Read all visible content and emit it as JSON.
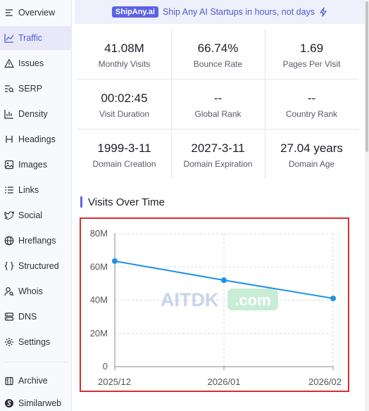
{
  "sidebar": {
    "items": [
      {
        "label": "Overview",
        "icon": "menu-icon",
        "active": false
      },
      {
        "label": "Traffic",
        "icon": "line-chart-icon",
        "active": true
      },
      {
        "label": "Issues",
        "icon": "warning-icon",
        "active": false
      },
      {
        "label": "SERP",
        "icon": "search-list-icon",
        "active": false
      },
      {
        "label": "Density",
        "icon": "bar-chart-icon",
        "active": false
      },
      {
        "label": "Headings",
        "icon": "heading-icon",
        "active": false
      },
      {
        "label": "Images",
        "icon": "image-icon",
        "active": false
      },
      {
        "label": "Links",
        "icon": "list-icon",
        "active": false
      },
      {
        "label": "Social",
        "icon": "twitter-icon",
        "active": false
      },
      {
        "label": "Hreflangs",
        "icon": "globe-icon",
        "active": false
      },
      {
        "label": "Structured",
        "icon": "braces-icon",
        "active": false
      },
      {
        "label": "Whois",
        "icon": "user-search-icon",
        "active": false
      },
      {
        "label": "DNS",
        "icon": "server-icon",
        "active": false
      },
      {
        "label": "Settings",
        "icon": "gear-icon",
        "active": false
      }
    ],
    "footer": [
      {
        "label": "Archive",
        "icon": "archive-icon"
      },
      {
        "label": "Similarweb",
        "icon": "similarweb-icon"
      }
    ]
  },
  "banner": {
    "badge": "ShipAny.ai",
    "text": "Ship Any AI Startups in hours, not days"
  },
  "stats": [
    {
      "value": "41.08M",
      "label": "Monthly Visits"
    },
    {
      "value": "66.74%",
      "label": "Bounce Rate"
    },
    {
      "value": "1.69",
      "label": "Pages Per Visit"
    },
    {
      "value": "00:02:45",
      "label": "Visit Duration"
    },
    {
      "value": "--",
      "label": "Global Rank"
    },
    {
      "value": "--",
      "label": "Country Rank"
    },
    {
      "value": "1999-3-11",
      "label": "Domain Creation"
    },
    {
      "value": "2027-3-11",
      "label": "Domain Expiration"
    },
    {
      "value": "27.04 years",
      "label": "Domain Age"
    }
  ],
  "section_title": "Visits Over Time",
  "watermark": {
    "text1": "AITDK",
    "text2": ".com"
  },
  "colors": {
    "accent": "#5b63e6",
    "line": "#1e90e8",
    "highlight_border": "#d32f2f"
  },
  "chart_data": {
    "type": "line",
    "categories": [
      "2025/12",
      "2026/01",
      "2026/02"
    ],
    "series": [
      {
        "values": [
          63500000,
          52000000,
          41080000
        ]
      }
    ],
    "yticks": [
      "0",
      "20M",
      "40M",
      "60M",
      "80M"
    ],
    "ylim": [
      0,
      80000000
    ],
    "grid": true
  }
}
